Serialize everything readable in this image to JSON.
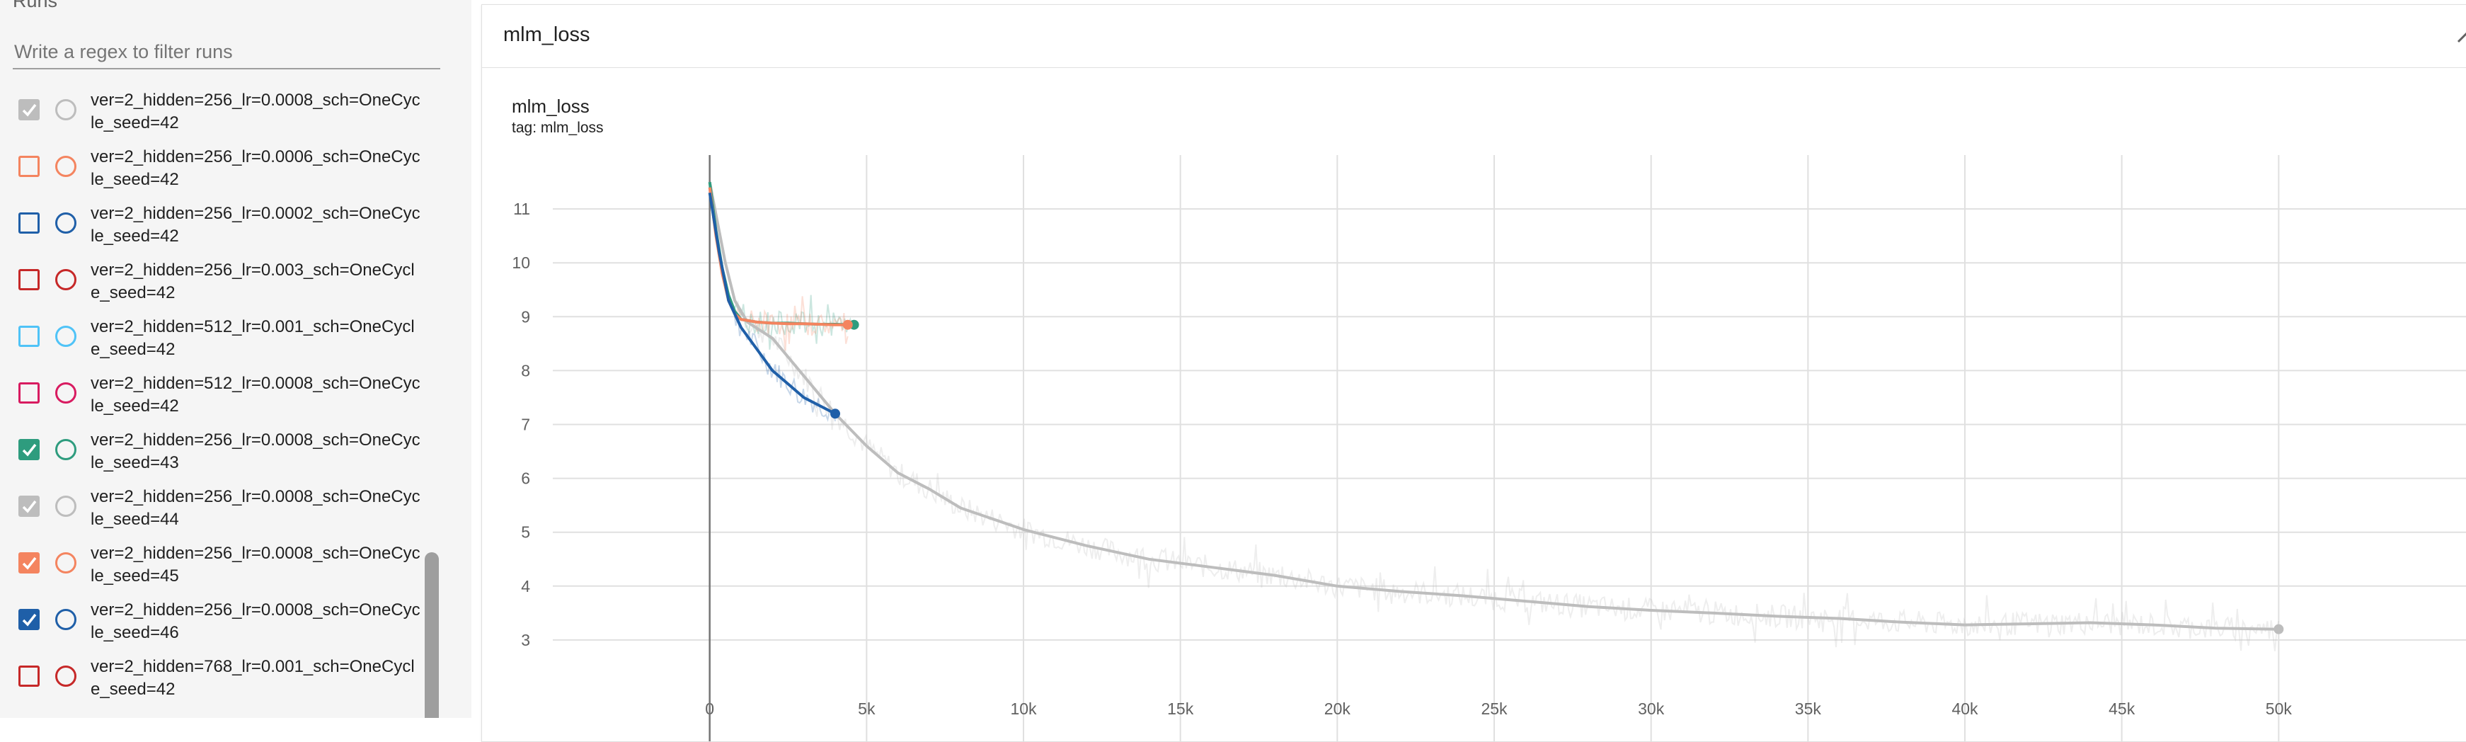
{
  "sidebar": {
    "title": "Runs",
    "filter_placeholder": "Write a regex to filter runs",
    "runs": [
      {
        "label": "ver=2_hidden=256_lr=0.0008_sch=OneCycle_seed=42",
        "checked": true,
        "color": "#bdbdbd"
      },
      {
        "label": "ver=2_hidden=256_lr=0.0006_sch=OneCycle_seed=42",
        "checked": false,
        "color": "#f4845f"
      },
      {
        "label": "ver=2_hidden=256_lr=0.0002_sch=OneCycle_seed=42",
        "checked": false,
        "color": "#1f5fa8"
      },
      {
        "label": "ver=2_hidden=256_lr=0.003_sch=OneCycle_seed=42",
        "checked": false,
        "color": "#c62828"
      },
      {
        "label": "ver=2_hidden=512_lr=0.001_sch=OneCycle_seed=42",
        "checked": false,
        "color": "#4fc3f7"
      },
      {
        "label": "ver=2_hidden=512_lr=0.0008_sch=OneCycle_seed=42",
        "checked": false,
        "color": "#d81b60"
      },
      {
        "label": "ver=2_hidden=256_lr=0.0008_sch=OneCycle_seed=43",
        "checked": true,
        "color": "#2e9c7e"
      },
      {
        "label": "ver=2_hidden=256_lr=0.0008_sch=OneCycle_seed=44",
        "checked": true,
        "color": "#bdbdbd"
      },
      {
        "label": "ver=2_hidden=256_lr=0.0008_sch=OneCycle_seed=45",
        "checked": true,
        "color": "#f4845f"
      },
      {
        "label": "ver=2_hidden=256_lr=0.0008_sch=OneCycle_seed=46",
        "checked": true,
        "color": "#1f5fa8"
      },
      {
        "label": "ver=2_hidden=768_lr=0.001_sch=OneCycle_seed=42",
        "checked": false,
        "color": "#c62828"
      }
    ]
  },
  "panel": {
    "title": "mlm_loss",
    "card_title": "mlm_loss",
    "card_tag": "tag: mlm_loss"
  },
  "chart_data": {
    "type": "line",
    "title": "mlm_loss",
    "xlim": [
      -5000,
      55000
    ],
    "ylim": [
      2,
      12
    ],
    "x_ticks": [
      0,
      5000,
      10000,
      15000,
      20000,
      25000,
      30000,
      35000,
      40000,
      45000,
      50000
    ],
    "x_tick_labels": [
      "0",
      "5k",
      "10k",
      "15k",
      "20k",
      "25k",
      "30k",
      "35k",
      "40k",
      "45k",
      "50k"
    ],
    "y_ticks": [
      3,
      4,
      5,
      6,
      7,
      8,
      9,
      10,
      11
    ],
    "grid": true,
    "series": [
      {
        "color": "#bdbdbd",
        "x": [
          0,
          200,
          500,
          800,
          1200,
          2000,
          3000,
          4000,
          4500,
          5000,
          6000,
          7000,
          8000,
          9000,
          10000,
          12000,
          14000,
          16000,
          18000,
          20000,
          22000,
          24000,
          26000,
          28000,
          30000,
          32000,
          34000,
          36000,
          38000,
          40000,
          42000,
          44000,
          46000,
          48000,
          50000
        ],
        "y": [
          11.5,
          10.9,
          10.0,
          9.3,
          8.9,
          8.6,
          7.9,
          7.2,
          6.9,
          6.6,
          6.1,
          5.8,
          5.45,
          5.25,
          5.05,
          4.75,
          4.5,
          4.35,
          4.2,
          4.0,
          3.9,
          3.82,
          3.72,
          3.62,
          3.55,
          3.5,
          3.44,
          3.4,
          3.33,
          3.28,
          3.3,
          3.32,
          3.28,
          3.22,
          3.2
        ]
      },
      {
        "color": "#2e9c7e",
        "x": [
          0,
          200,
          400,
          600,
          800,
          1000,
          1500,
          2000,
          2500,
          3000,
          3500,
          4000,
          4600
        ],
        "y": [
          11.5,
          10.6,
          9.9,
          9.4,
          9.1,
          8.95,
          8.9,
          8.88,
          8.88,
          8.87,
          8.86,
          8.86,
          8.85
        ]
      },
      {
        "color": "#f4845f",
        "x": [
          0,
          200,
          400,
          600,
          800,
          1000,
          1500,
          2000,
          2500,
          3000,
          3500,
          4000,
          4400
        ],
        "y": [
          11.4,
          10.5,
          9.8,
          9.3,
          9.05,
          8.95,
          8.9,
          8.88,
          8.87,
          8.87,
          8.86,
          8.85,
          8.85
        ]
      },
      {
        "color": "#1f5fa8",
        "x": [
          0,
          300,
          600,
          1000,
          1500,
          2000,
          2500,
          3000,
          3500,
          4000
        ],
        "y": [
          11.3,
          10.2,
          9.3,
          8.8,
          8.4,
          8.0,
          7.75,
          7.5,
          7.35,
          7.2
        ]
      }
    ]
  }
}
